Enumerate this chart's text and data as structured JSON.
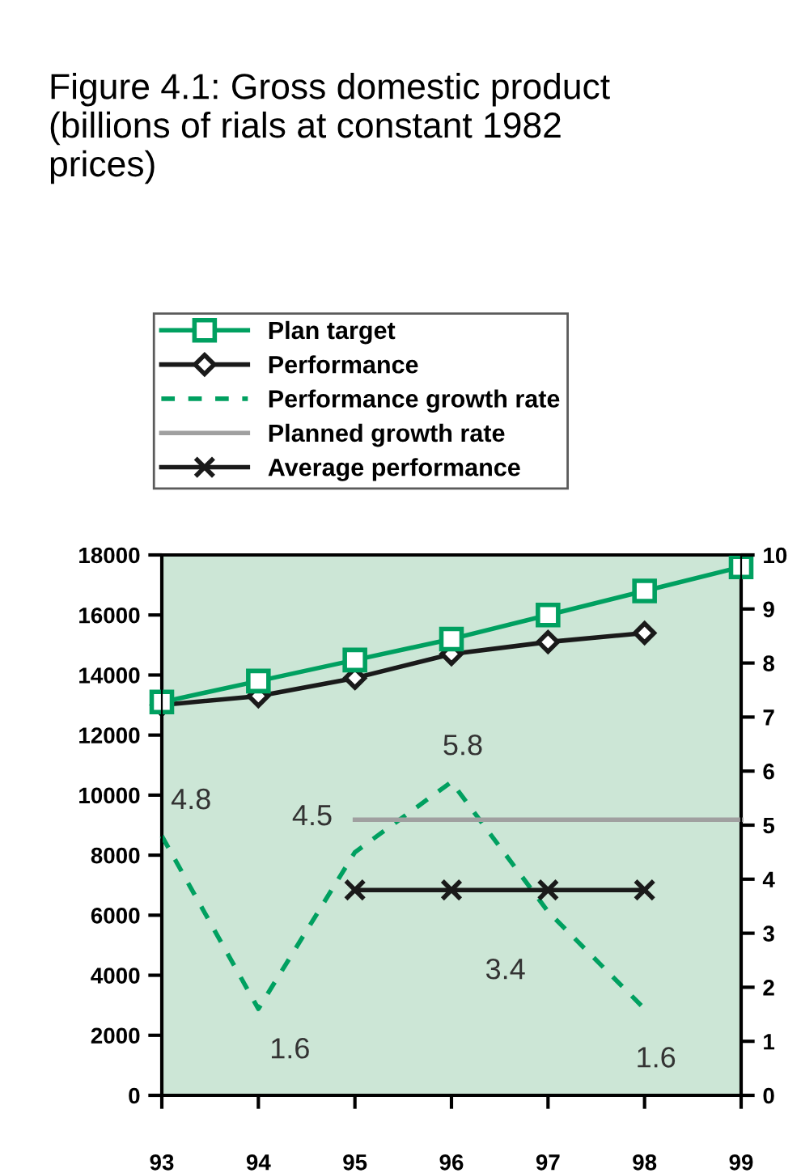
{
  "chart_data": {
    "type": "line",
    "title": "Figure 4.1: Gross domestic product\n(billions of rials at constant 1982\nprices)",
    "categories": [
      "93",
      "94",
      "95",
      "96",
      "97",
      "98",
      "99"
    ],
    "series": [
      {
        "name": "Plan target",
        "color": "#00a060",
        "marker": "square",
        "line_style": "solid",
        "values": [
          13100,
          13800,
          14500,
          15200,
          16000,
          16800,
          17600
        ]
      },
      {
        "name": "Performance",
        "color": "#1a1a1a",
        "marker": "diamond",
        "line_style": "solid",
        "values": [
          13000,
          13300,
          13900,
          14700,
          15100,
          15400,
          null
        ]
      },
      {
        "name": "Performance growth rate",
        "color": "#00a060",
        "marker": "none",
        "line_style": "dashed",
        "axis": "y2",
        "values": [
          4.8,
          1.6,
          4.5,
          5.8,
          3.4,
          1.6,
          null
        ],
        "value_labels": [
          "4.8",
          "1.6",
          "4.5",
          "5.8",
          "3.4",
          "1.6",
          null
        ]
      },
      {
        "name": "Planned growth rate",
        "color": "#a0a0a0",
        "marker": "none",
        "line_style": "solid",
        "axis": "y2",
        "values": [
          null,
          null,
          5.1,
          5.1,
          5.1,
          5.1,
          5.1
        ]
      },
      {
        "name": "Average performance",
        "color": "#1a1a1a",
        "marker": "cross",
        "line_style": "solid",
        "axis": "y2",
        "values": [
          null,
          null,
          3.8,
          3.8,
          3.8,
          3.8,
          null
        ]
      }
    ],
    "ylim": [
      0,
      18000
    ],
    "yticks": [
      0,
      2000,
      4000,
      6000,
      8000,
      10000,
      12000,
      14000,
      16000,
      18000
    ],
    "y2lim": [
      0,
      10
    ],
    "y2ticks": [
      0,
      1,
      2,
      3,
      4,
      5,
      6,
      7,
      8,
      9,
      10
    ],
    "grid": false,
    "legend": "top"
  }
}
